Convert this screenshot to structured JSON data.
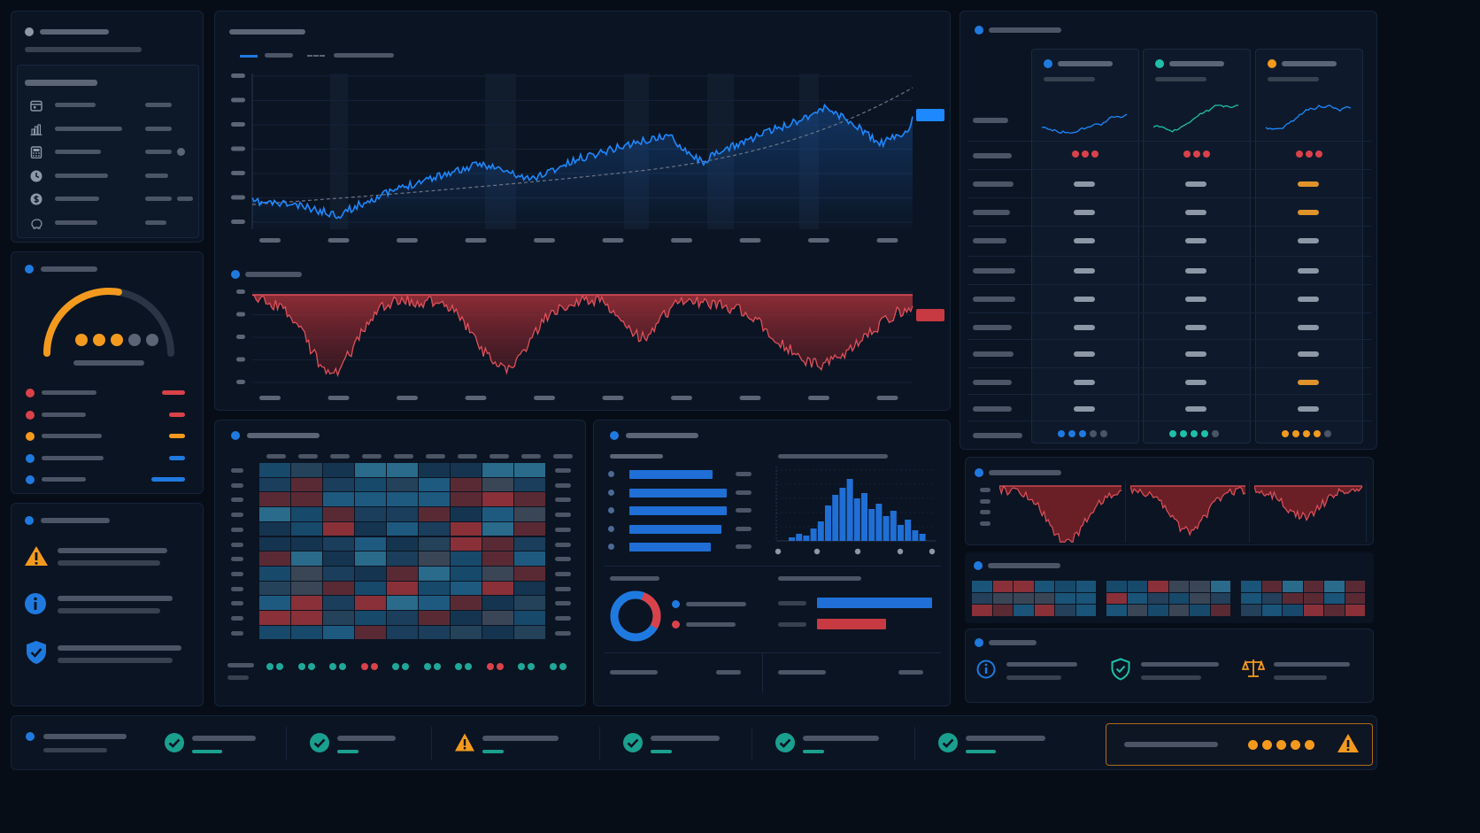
{
  "colors": {
    "background": "#070d17",
    "panel": "#0b1422",
    "accent_blue": "#1f7ae0",
    "line_blue": "#1e88ff",
    "drawdown_red": "#d9424a",
    "orange": "#f39a1e",
    "teal": "#1fbfa8",
    "placeholder_gray": "#4b5566"
  },
  "sidebar": {
    "menu_icons": [
      "calendar-icon",
      "bar-chart-icon",
      "calculator-icon",
      "clock-icon",
      "dollar-icon",
      "piggy-bank-icon"
    ],
    "gauge": {
      "fill_fraction": 0.55,
      "active_dots": 3,
      "total_dots": 5
    },
    "status_dot_colors": [
      "#d9424a",
      "#d9424a",
      "#f39a1e",
      "#1f7ae0",
      "#1f7ae0"
    ],
    "alert_icons": [
      "warning-icon",
      "info-icon",
      "shield-icon"
    ]
  },
  "tables": {
    "column_accents": [
      "#1f7ae0",
      "#1fbfa8",
      "#f39a1e"
    ]
  },
  "footer": {
    "status_icons": [
      "check-icon",
      "check-icon",
      "warning-icon",
      "check-icon",
      "check-icon",
      "check-icon"
    ],
    "alert_dots": 5
  }
}
